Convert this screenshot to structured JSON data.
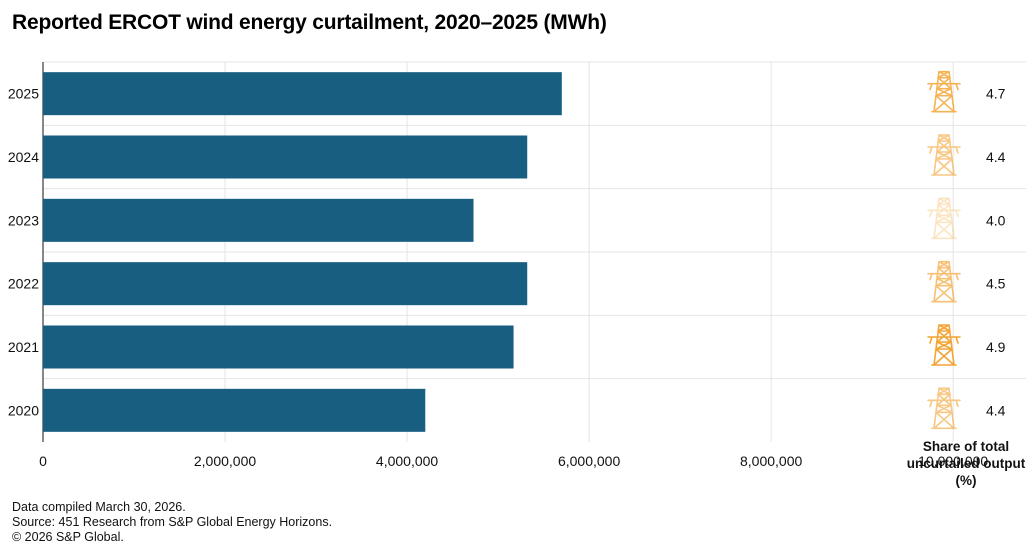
{
  "title": "Reported ERCOT wind energy curtailment, 2020–2025 (MWh)",
  "colors": {
    "bar": "#175e81",
    "icon": "#f3a433",
    "grid": "#e4e4e4",
    "axis": "#111111"
  },
  "chart_data": {
    "type": "bar",
    "orientation": "horizontal",
    "title": "Reported ERCOT wind energy curtailment, 2020–2025 (MWh)",
    "categories": [
      "2025",
      "2024",
      "2023",
      "2022",
      "2021",
      "2020"
    ],
    "values": [
      5700000,
      5320000,
      4730000,
      5320000,
      5170000,
      4200000
    ],
    "xlim": [
      0,
      10800000
    ],
    "x_ticks": [
      0,
      2000000,
      4000000,
      6000000,
      8000000,
      10000000
    ],
    "x_tick_labels": [
      "0",
      "2,000,000",
      "4,000,000",
      "6,000,000",
      "8,000,000",
      "10,000,000"
    ],
    "grid": true,
    "share_of_total_uncurtailed_output_pct": {
      "label": "Share of total uncurtailed output (%)",
      "labels": [
        "4.7",
        "4.4",
        "4.0",
        "4.5",
        "4.9",
        "4.4"
      ],
      "values": [
        4.7,
        4.4,
        4.0,
        4.5,
        4.9,
        4.4
      ],
      "icon": "transmission-tower-icon"
    }
  },
  "share_label": "Share of total uncurtailed output (%)",
  "footer": {
    "compiled": "Data compiled March 30, 2026.",
    "source": "Source: 451 Research from S&P Global Energy Horizons.",
    "copyright": "© 2026 S&P Global."
  }
}
